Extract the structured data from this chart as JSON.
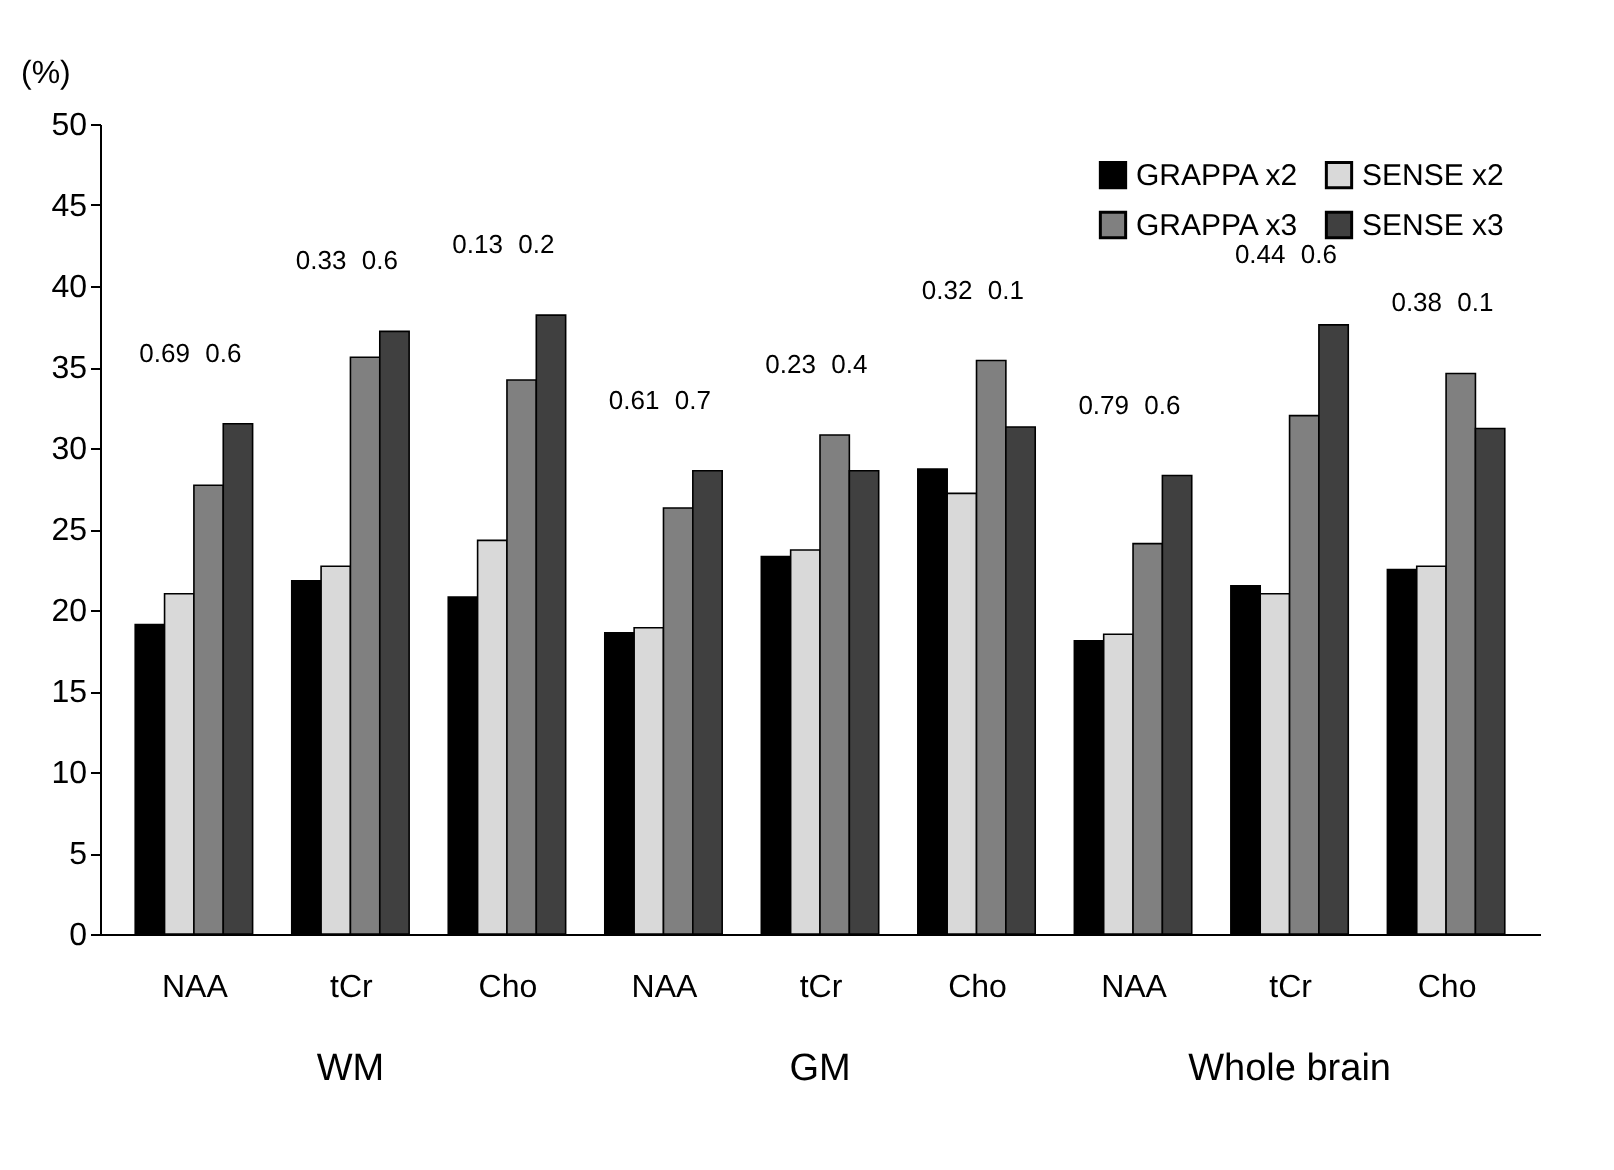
{
  "chart_data": {
    "type": "bar",
    "ylabel": "(%)",
    "categories": [
      "NAA",
      "tCr",
      "Cho",
      "NAA",
      "tCr",
      "Cho",
      "NAA",
      "tCr",
      "Cho"
    ],
    "series": [
      {
        "name": "GRAPPA x2",
        "color": "#000000",
        "values": [
          19.1,
          21.8,
          20.8,
          18.6,
          23.3,
          28.7,
          18.1,
          21.5,
          22.5
        ]
      },
      {
        "name": "SENSE x2",
        "color": "#d9d9d9",
        "values": [
          21.0,
          22.7,
          24.3,
          18.9,
          23.7,
          27.2,
          18.5,
          21.0,
          22.7
        ]
      },
      {
        "name": "GRAPPA x3",
        "color": "#808080",
        "values": [
          27.7,
          35.6,
          34.2,
          26.3,
          30.8,
          35.4,
          24.1,
          32.0,
          34.6
        ]
      },
      {
        "name": "SENSE x3",
        "color": "#404040",
        "values": [
          31.5,
          37.2,
          38.2,
          28.6,
          28.6,
          31.3,
          28.3,
          37.6,
          31.2
        ]
      }
    ],
    "ylim": [
      0,
      50
    ],
    "yticks": [
      0,
      5,
      10,
      15,
      20,
      25,
      30,
      35,
      40,
      45,
      50
    ],
    "grid": false,
    "legend": "top right",
    "annotations": [
      "0.69",
      "0.6",
      "0.33",
      "0.6",
      "0.13",
      "0.2",
      "0.61",
      "0.7",
      "0.23",
      "0.4",
      "0.32",
      "0.1",
      "0.79",
      "0.6",
      "0.44",
      "0.6",
      "0.38",
      "0.1",
      "WM",
      "GM",
      "Whole brain"
    ]
  }
}
